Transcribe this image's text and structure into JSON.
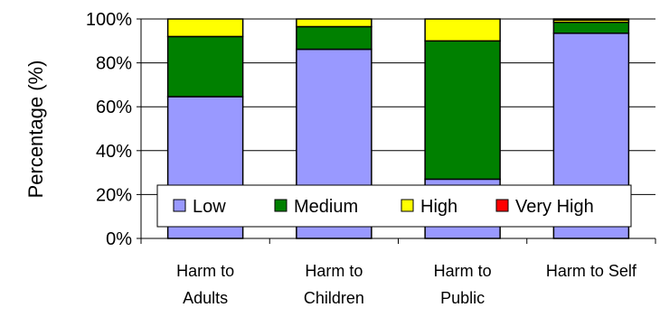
{
  "chart_data": {
    "type": "bar",
    "stacked": true,
    "normalized_percent": true,
    "title": "",
    "xlabel": "",
    "ylabel": "Percentage (%)",
    "ylim": [
      0,
      100
    ],
    "yticks": [
      "0%",
      "20%",
      "40%",
      "60%",
      "80%",
      "100%"
    ],
    "ytick_values": [
      0,
      20,
      40,
      60,
      80,
      100
    ],
    "grid": true,
    "legend_position": "bottom-inside",
    "categories": [
      [
        "Harm to",
        "Adults"
      ],
      [
        "Harm to",
        "Children"
      ],
      [
        "Harm to",
        "Public"
      ],
      [
        "Harm to Self"
      ]
    ],
    "series": [
      {
        "name": "Low",
        "color": "#9999ff",
        "values": [
          64.6,
          86.2,
          27.0,
          93.5
        ]
      },
      {
        "name": "Medium",
        "color": "#008000",
        "values": [
          27.4,
          10.3,
          63.0,
          5.0
        ]
      },
      {
        "name": "High",
        "color": "#ffff00",
        "values": [
          8.0,
          3.5,
          10.0,
          1.0
        ]
      },
      {
        "name": "Very High",
        "color": "#ff0000",
        "values": [
          0,
          0,
          0,
          0.5
        ]
      }
    ]
  }
}
